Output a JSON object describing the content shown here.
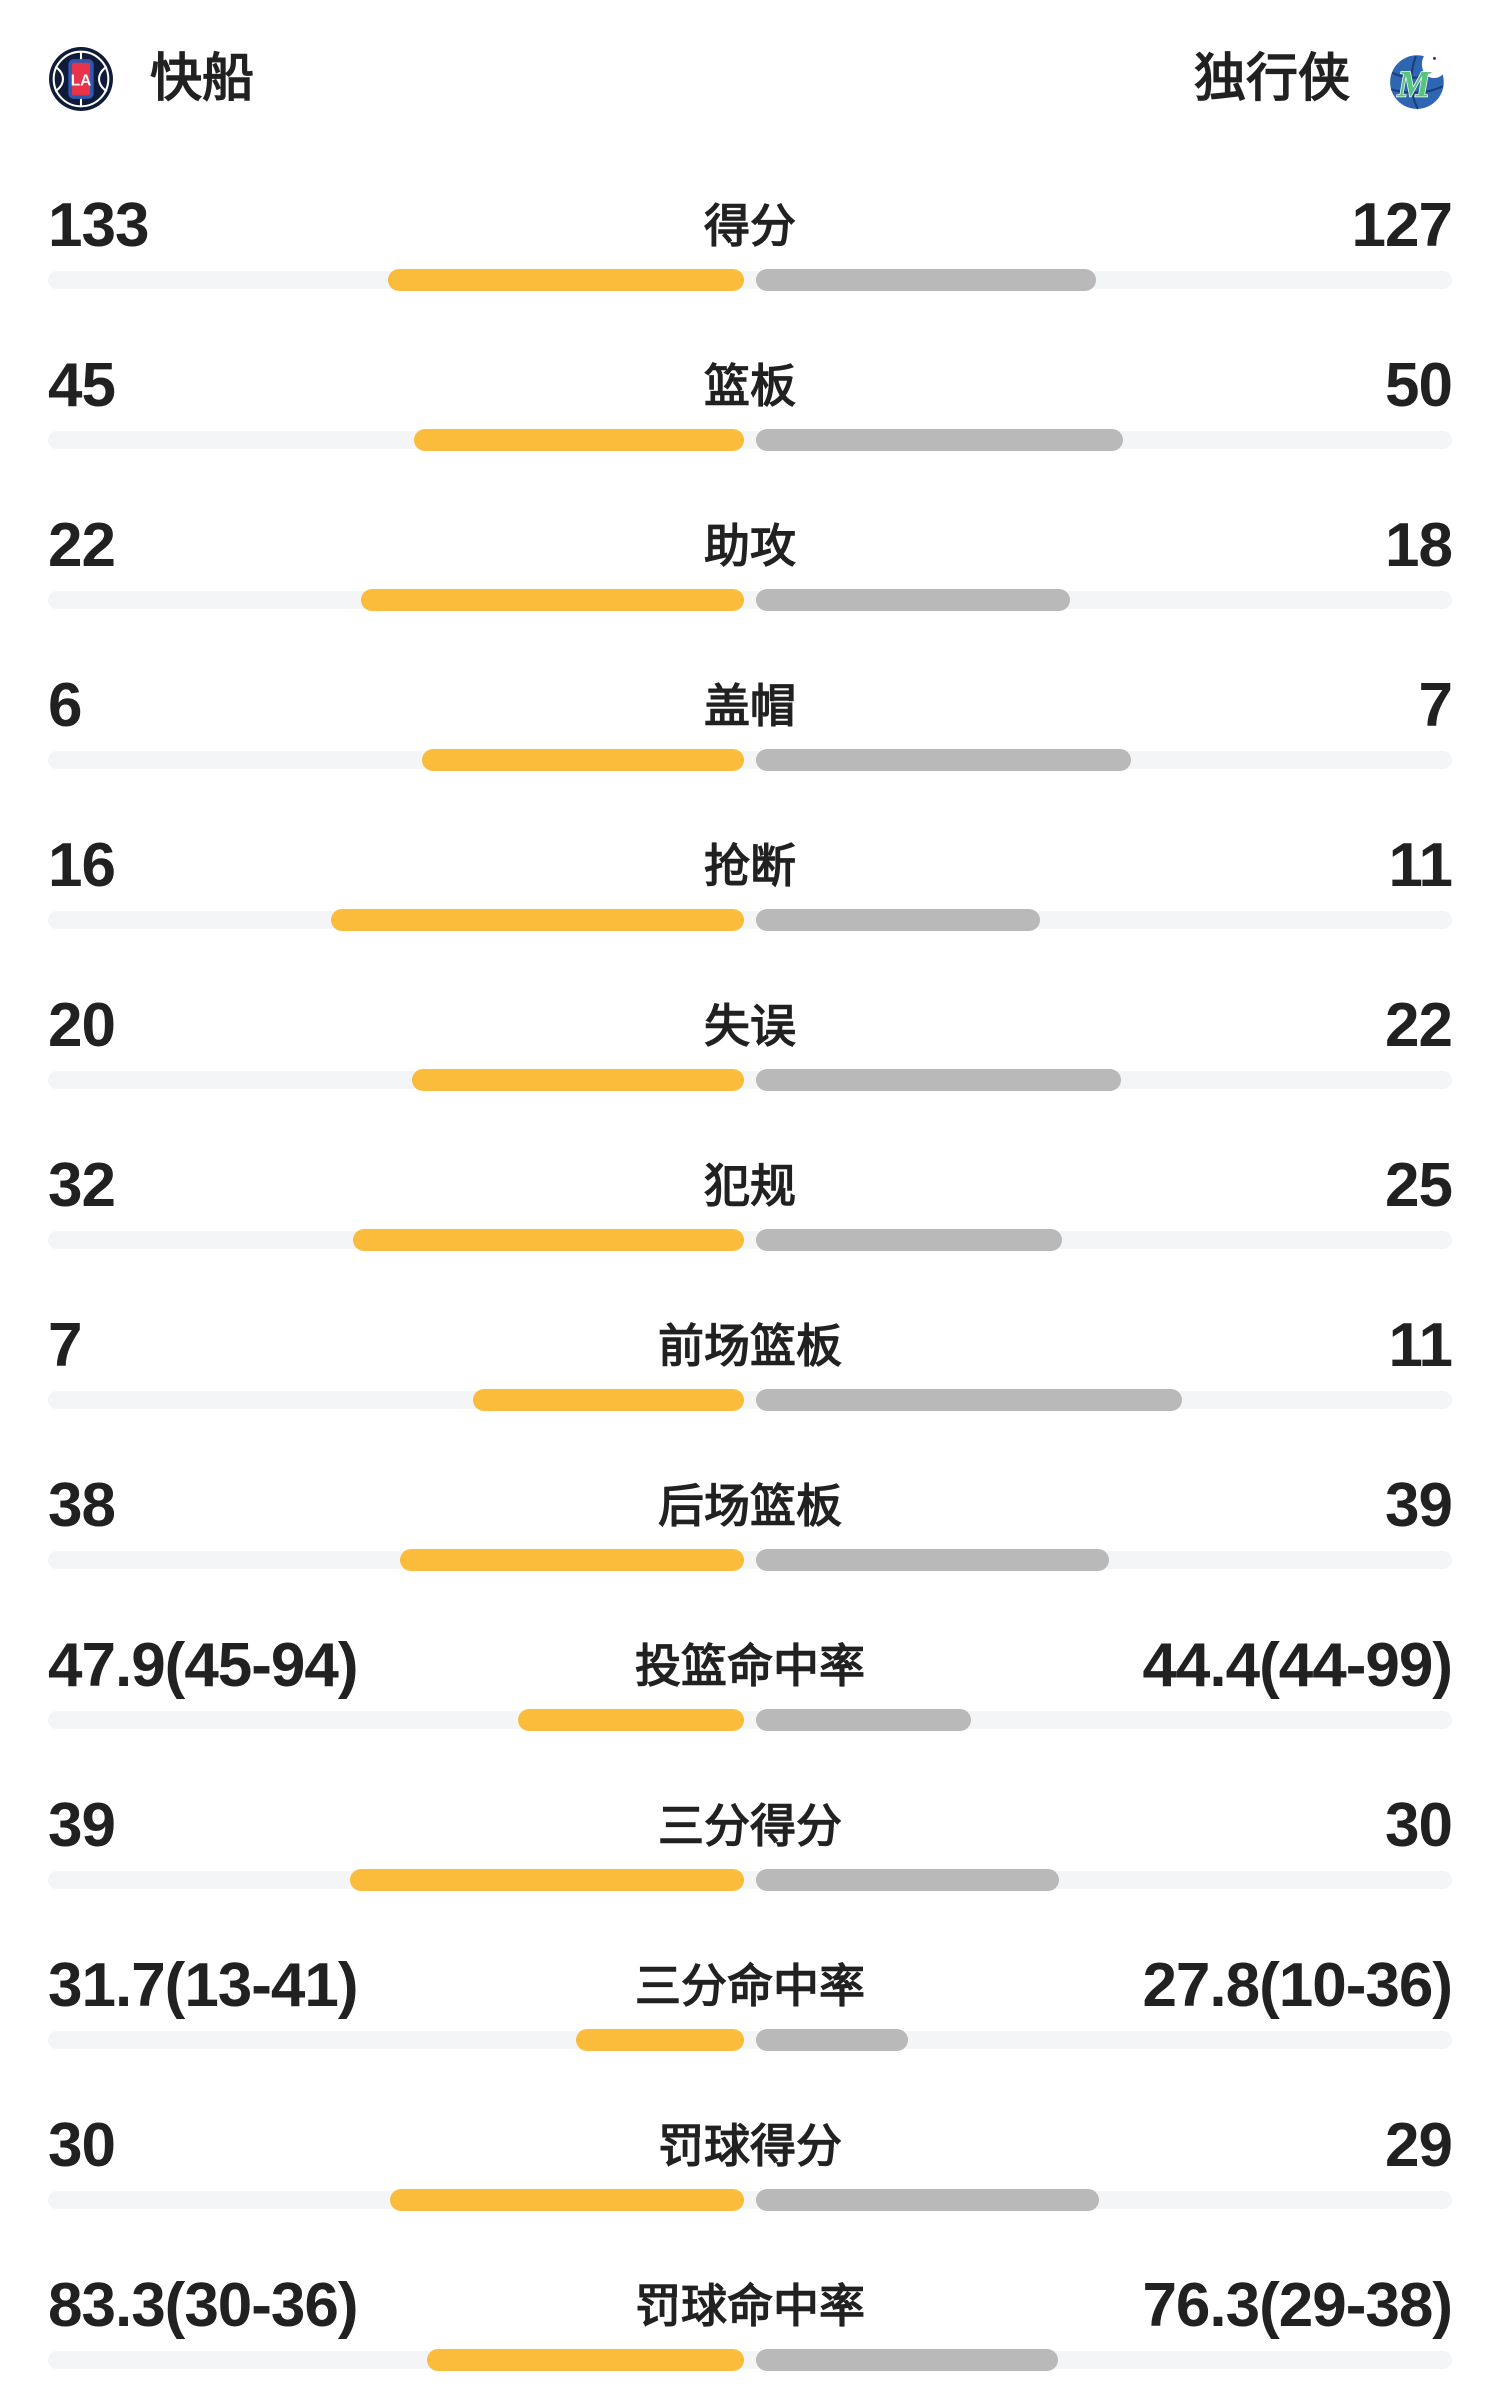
{
  "header": {
    "left_team": {
      "name": "快船",
      "logo": "clippers-logo"
    },
    "right_team": {
      "name": "独行侠",
      "logo": "mavericks-logo"
    }
  },
  "colors": {
    "left_bar": "#FBBC3C",
    "right_bar": "#B9B9B9",
    "track": "#F4F5F7",
    "text": "#212121",
    "page_bg": "#FFFFFF"
  },
  "chart_data": {
    "type": "bar",
    "layout": "center-anchored paired horizontal bars, left team amber, right team gray, full-width light track",
    "teams": [
      "快船",
      "独行侠"
    ],
    "rows": [
      {
        "label": "得分",
        "left": "133",
        "right": "127",
        "left_num": 133,
        "right_num": 127,
        "left_bar_pct": 25.36,
        "right_bar_pct": 24.21
      },
      {
        "label": "篮板",
        "left": "45",
        "right": "50",
        "left_num": 45,
        "right_num": 50,
        "left_bar_pct": 23.48,
        "right_bar_pct": 26.09
      },
      {
        "label": "助攻",
        "left": "22",
        "right": "18",
        "left_num": 22,
        "right_num": 18,
        "left_bar_pct": 27.26,
        "right_bar_pct": 22.31
      },
      {
        "label": "盖帽",
        "left": "6",
        "right": "7",
        "left_num": 6,
        "right_num": 7,
        "left_bar_pct": 22.88,
        "right_bar_pct": 26.69
      },
      {
        "label": "抢断",
        "left": "16",
        "right": "11",
        "left_num": 16,
        "right_num": 11,
        "left_bar_pct": 29.38,
        "right_bar_pct": 20.2
      },
      {
        "label": "失误",
        "left": "20",
        "right": "22",
        "left_num": 20,
        "right_num": 22,
        "left_bar_pct": 23.61,
        "right_bar_pct": 25.96
      },
      {
        "label": "犯规",
        "left": "32",
        "right": "25",
        "left_num": 32,
        "right_num": 25,
        "left_bar_pct": 27.83,
        "right_bar_pct": 21.74
      },
      {
        "label": "前场篮板",
        "left": "7",
        "right": "11",
        "left_num": 7,
        "right_num": 11,
        "left_bar_pct": 19.28,
        "right_bar_pct": 30.29
      },
      {
        "label": "后场篮板",
        "left": "38",
        "right": "39",
        "left_num": 38,
        "right_num": 39,
        "left_bar_pct": 24.46,
        "right_bar_pct": 25.11
      },
      {
        "label": "投篮命中率",
        "left": "47.9(45-94)",
        "right": "44.4(44-99)",
        "left_num": 47.9,
        "right_num": 44.4,
        "left_bar_pct": 16.05,
        "right_bar_pct": 15.25
      },
      {
        "label": "三分得分",
        "left": "39",
        "right": "30",
        "left_num": 39,
        "right_num": 30,
        "left_bar_pct": 28.02,
        "right_bar_pct": 21.55
      },
      {
        "label": "三分命中率",
        "left": "31.7(13-41)",
        "right": "27.8(10-36)",
        "left_num": 31.7,
        "right_num": 27.8,
        "left_bar_pct": 11.93,
        "right_bar_pct": 10.78
      },
      {
        "label": "罚球得分",
        "left": "30",
        "right": "29",
        "left_num": 30,
        "right_num": 29,
        "left_bar_pct": 25.21,
        "right_bar_pct": 24.37
      },
      {
        "label": "罚球命中率",
        "left": "83.3(30-36)",
        "right": "76.3(29-38)",
        "left_num": 83.3,
        "right_num": 76.3,
        "left_bar_pct": 22.53,
        "right_bar_pct": 21.46
      }
    ]
  }
}
